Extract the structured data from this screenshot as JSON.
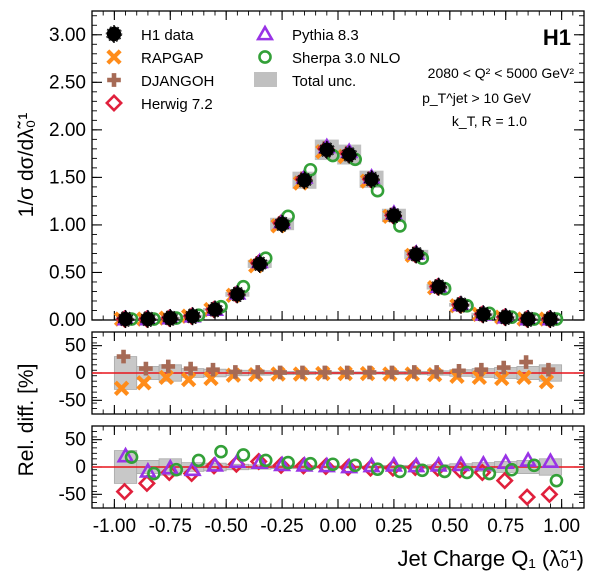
{
  "chart_data": [
    {
      "type": "scatter",
      "panel": "main",
      "ylabel": "1/σ dσ/dλ̃₀¹",
      "ylim": [
        0,
        3.25
      ],
      "yticks": [
        "0.00",
        "0.50",
        "1.00",
        "1.50",
        "2.00",
        "2.50",
        "3.00"
      ],
      "legend_placement": "top-left",
      "title_tag": "H1",
      "annotations": [
        "2080 < Q² < 5000 GeV²",
        "p_T^jet > 10 GeV",
        "k_T, R = 1.0"
      ],
      "x": [
        -0.95,
        -0.85,
        -0.75,
        -0.65,
        -0.55,
        -0.45,
        -0.35,
        -0.25,
        -0.15,
        -0.05,
        0.05,
        0.15,
        0.25,
        0.35,
        0.45,
        0.55,
        0.65,
        0.75,
        0.85,
        0.95
      ],
      "series": [
        {
          "name": "H1 data",
          "values": [
            0.01,
            0.01,
            0.02,
            0.04,
            0.11,
            0.27,
            0.59,
            1.01,
            1.47,
            1.79,
            1.74,
            1.48,
            1.1,
            0.69,
            0.35,
            0.16,
            0.06,
            0.03,
            0.01,
            0.01
          ]
        },
        {
          "name": "RAPGAP",
          "values": [
            0.01,
            0.01,
            0.02,
            0.04,
            0.11,
            0.26,
            0.57,
            0.99,
            1.44,
            1.77,
            1.72,
            1.46,
            1.09,
            0.68,
            0.34,
            0.15,
            0.06,
            0.03,
            0.01,
            0.01
          ]
        },
        {
          "name": "DJANGOH",
          "values": [
            0.01,
            0.01,
            0.02,
            0.04,
            0.11,
            0.27,
            0.6,
            1.02,
            1.49,
            1.81,
            1.76,
            1.49,
            1.11,
            0.7,
            0.35,
            0.16,
            0.06,
            0.03,
            0.01,
            0.01
          ]
        },
        {
          "name": "Herwig 7.2",
          "values": [
            0.01,
            0.01,
            0.02,
            0.04,
            0.11,
            0.27,
            0.6,
            1.02,
            1.48,
            1.8,
            1.75,
            1.48,
            1.1,
            0.69,
            0.35,
            0.16,
            0.06,
            0.03,
            0.01,
            0.01
          ]
        },
        {
          "name": "Pythia 8.3",
          "values": [
            0.01,
            0.01,
            0.02,
            0.04,
            0.11,
            0.28,
            0.61,
            1.03,
            1.5,
            1.82,
            1.77,
            1.5,
            1.12,
            0.7,
            0.35,
            0.16,
            0.06,
            0.03,
            0.01,
            0.01
          ]
        },
        {
          "name": "Sherpa 3.0 NLO",
          "values": [
            0.01,
            0.01,
            0.02,
            0.05,
            0.14,
            0.35,
            0.65,
            1.09,
            1.58,
            1.73,
            1.69,
            1.36,
            0.99,
            0.65,
            0.33,
            0.15,
            0.07,
            0.03,
            0.01,
            0.01
          ]
        }
      ],
      "uncertainty_label": "Total unc.",
      "colors": {
        "H1 data": "#000000",
        "RAPGAP": "#ff8c1a",
        "DJANGOH": "#a66a55",
        "Herwig 7.2": "#e0203c",
        "Pythia 8.3": "#9933e6",
        "Sherpa 3.0 NLO": "#33a038",
        "Total unc.": "#c0c0c0"
      }
    },
    {
      "type": "scatter",
      "panel": "ratio-upper",
      "ylabel": "Rel. diff. [%]",
      "ylim": [
        -75,
        75
      ],
      "yticks": [
        "-50",
        "0",
        "50"
      ],
      "reference_line": 0,
      "x": [
        -0.95,
        -0.85,
        -0.75,
        -0.65,
        -0.55,
        -0.45,
        -0.35,
        -0.25,
        -0.15,
        -0.05,
        0.05,
        0.15,
        0.25,
        0.35,
        0.45,
        0.55,
        0.65,
        0.75,
        0.85,
        0.95
      ],
      "uncertainty_band_percent": [
        30,
        12,
        15,
        8,
        7,
        5,
        4,
        3,
        3,
        2,
        2,
        2,
        3,
        3,
        4,
        6,
        8,
        10,
        12,
        15
      ],
      "series": [
        {
          "name": "RAPGAP",
          "values": [
            -28,
            -18,
            -8,
            -12,
            -10,
            -4,
            -3,
            -2,
            -2,
            -1,
            -1,
            -1,
            -2,
            -2,
            -3,
            -6,
            -8,
            -10,
            -8,
            -16
          ]
        },
        {
          "name": "DJANGOH",
          "values": [
            30,
            8,
            12,
            8,
            6,
            2,
            2,
            1,
            1,
            1,
            1,
            1,
            1,
            2,
            2,
            4,
            6,
            10,
            20,
            6
          ]
        }
      ]
    },
    {
      "type": "scatter",
      "panel": "ratio-lower",
      "ylabel": "Rel. diff. [%]",
      "ylim": [
        -75,
        75
      ],
      "yticks": [
        "-50",
        "0",
        "50"
      ],
      "xlabel": "Jet Charge Q₁ (λ̃₀¹)",
      "xlim": [
        -1.1,
        1.1
      ],
      "xticks": [
        "-1.00",
        "-0.75",
        "-0.50",
        "-0.25",
        "0.00",
        "0.25",
        "0.50",
        "0.75",
        "1.00"
      ],
      "reference_line": 0,
      "x": [
        -0.95,
        -0.85,
        -0.75,
        -0.65,
        -0.55,
        -0.45,
        -0.35,
        -0.25,
        -0.15,
        -0.05,
        0.05,
        0.15,
        0.25,
        0.35,
        0.45,
        0.55,
        0.65,
        0.75,
        0.85,
        0.95
      ],
      "uncertainty_band_percent": [
        30,
        12,
        15,
        8,
        7,
        5,
        4,
        3,
        3,
        2,
        2,
        2,
        3,
        3,
        4,
        6,
        8,
        10,
        12,
        15
      ],
      "series": [
        {
          "name": "Herwig 7.2",
          "values": [
            -45,
            -30,
            -10,
            -12,
            2,
            5,
            10,
            3,
            2,
            1,
            -1,
            -2,
            -2,
            -1,
            -2,
            -5,
            -10,
            -25,
            -55,
            -50
          ]
        },
        {
          "name": "Pythia 8.3",
          "values": [
            20,
            -8,
            -2,
            -5,
            3,
            10,
            8,
            4,
            3,
            2,
            0,
            2,
            3,
            2,
            3,
            4,
            5,
            8,
            12,
            10
          ]
        },
        {
          "name": "Sherpa 3.0 NLO",
          "values": [
            18,
            -12,
            -5,
            12,
            28,
            22,
            12,
            8,
            6,
            5,
            3,
            -4,
            -8,
            -6,
            -8,
            -10,
            -12,
            -5,
            3,
            -25
          ]
        }
      ]
    }
  ]
}
